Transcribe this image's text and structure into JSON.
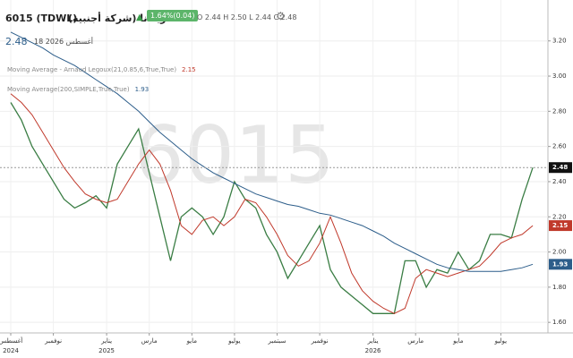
{
  "header": {
    "symbol": "6015 (TDWL)",
    "company": "أمريكانا (شركة أجنبية)",
    "change": "1.64%(0.04)",
    "ohlc": "O 2.44  H 2.50  L 2.44  C 2.48",
    "last": "2.48",
    "date": "18 أغسطس 2026"
  },
  "chart_data": {
    "type": "line",
    "watermark": "6015",
    "categories": [
      "أغسطس",
      null,
      null,
      null,
      "نوفمبر",
      null,
      null,
      null,
      null,
      "يناير",
      null,
      null,
      null,
      "مارس",
      null,
      null,
      null,
      "مايو",
      null,
      null,
      null,
      "يوليو",
      null,
      null,
      null,
      "سبتمبر",
      null,
      null,
      null,
      "نوفمبر",
      null,
      null,
      null,
      null,
      "يناير",
      null,
      null,
      null,
      "مارس",
      null,
      null,
      null,
      "مايو",
      null,
      null,
      null,
      "يوليو",
      null,
      null,
      null
    ],
    "category_years": [
      "2024",
      null,
      null,
      null,
      null,
      null,
      null,
      null,
      null,
      "2025",
      null,
      null,
      null,
      null,
      null,
      null,
      null,
      null,
      null,
      null,
      null,
      null,
      null,
      null,
      null,
      null,
      null,
      null,
      null,
      null,
      null,
      null,
      null,
      null,
      "2026",
      null,
      null,
      null,
      null,
      null,
      null,
      null,
      null,
      null,
      null,
      null,
      null,
      null,
      null,
      null
    ],
    "series": [
      {
        "color": "#3a7d44",
        "values": [
          2.85,
          2.75,
          2.6,
          2.5,
          2.4,
          2.3,
          2.25,
          2.28,
          2.32,
          2.25,
          2.5,
          2.6,
          2.7,
          2.45,
          2.2,
          1.95,
          2.2,
          2.25,
          2.2,
          2.1,
          2.2,
          2.4,
          2.3,
          2.25,
          2.1,
          2.0,
          1.85,
          1.95,
          2.05,
          2.15,
          1.9,
          1.8,
          1.75,
          1.7,
          1.65,
          1.65,
          1.65,
          1.95,
          1.95,
          1.8,
          1.9,
          1.88,
          2.0,
          1.9,
          1.95,
          2.1,
          2.1,
          2.08,
          2.3,
          2.48
        ]
      },
      {
        "name": "Moving Average - Arnaud Legoux(21,0.85,6,True,True)",
        "color": "#c0392b",
        "values": [
          2.9,
          2.85,
          2.78,
          2.68,
          2.58,
          2.48,
          2.4,
          2.33,
          2.3,
          2.28,
          2.3,
          2.4,
          2.5,
          2.58,
          2.5,
          2.35,
          2.15,
          2.1,
          2.18,
          2.2,
          2.15,
          2.2,
          2.3,
          2.28,
          2.2,
          2.1,
          1.98,
          1.92,
          1.95,
          2.05,
          2.2,
          2.05,
          1.88,
          1.78,
          1.72,
          1.68,
          1.65,
          1.68,
          1.85,
          1.9,
          1.88,
          1.86,
          1.88,
          1.9,
          1.92,
          1.98,
          2.05,
          2.08,
          2.1,
          2.15
        ]
      },
      {
        "name": "Moving Average(200,SIMPLE,True,True)",
        "color": "#2c5d8a",
        "values": [
          3.25,
          3.22,
          3.19,
          3.16,
          3.12,
          3.09,
          3.06,
          3.02,
          2.98,
          2.94,
          2.9,
          2.85,
          2.8,
          2.74,
          2.68,
          2.63,
          2.58,
          2.53,
          2.49,
          2.45,
          2.42,
          2.39,
          2.36,
          2.33,
          2.31,
          2.29,
          2.27,
          2.26,
          2.24,
          2.22,
          2.21,
          2.19,
          2.17,
          2.15,
          2.12,
          2.09,
          2.05,
          2.02,
          1.99,
          1.96,
          1.93,
          1.91,
          1.9,
          1.89,
          1.89,
          1.89,
          1.89,
          1.9,
          1.91,
          1.93
        ]
      }
    ],
    "ylim": [
      1.55,
      3.28
    ],
    "yticks": [
      {
        "value": 1.6,
        "label": "1.60"
      },
      {
        "value": 1.8,
        "label": "1.80"
      },
      {
        "value": 2.0,
        "label": "2.00"
      },
      {
        "value": 2.2,
        "label": "2.20"
      },
      {
        "value": 2.4,
        "label": "2.40"
      },
      {
        "value": 2.6,
        "label": "2.60"
      },
      {
        "value": 2.8,
        "label": "2.80"
      },
      {
        "value": 3.0,
        "label": "3.00"
      },
      {
        "value": 3.2,
        "label": "3.20"
      }
    ],
    "grid": true
  }
}
